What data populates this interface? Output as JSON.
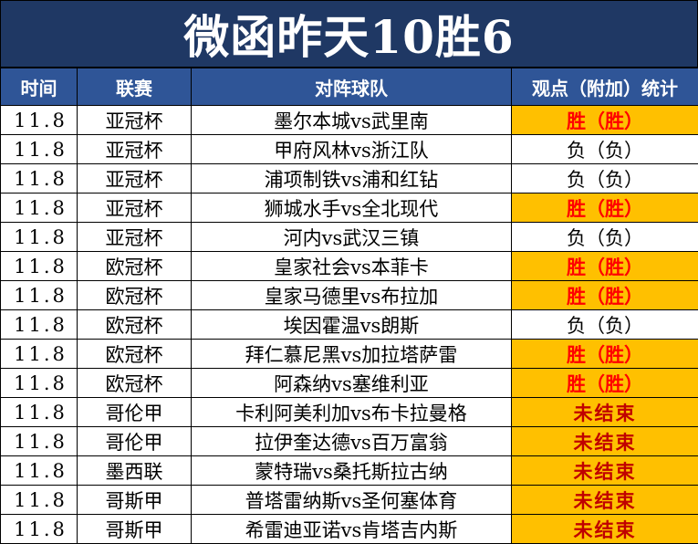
{
  "title": "微函昨天10胜6",
  "headers": {
    "date": "时间",
    "league": "联赛",
    "match": "对阵球队",
    "result": "观点（附加）统计"
  },
  "status_colors": {
    "win_bg": "#ffc000",
    "win_text": "#ff0000",
    "pending_text": "#c00000",
    "header_bg": "#2f5597",
    "title_bg": "#1f3864"
  },
  "rows": [
    {
      "date": "11.8",
      "league": "亚冠杯",
      "match": "墨尔本城vs武里南",
      "result": "胜（胜）",
      "status": "win"
    },
    {
      "date": "11.8",
      "league": "亚冠杯",
      "match": "甲府风林vs浙江队",
      "result": "负（负）",
      "status": "loss"
    },
    {
      "date": "11.8",
      "league": "亚冠杯",
      "match": "浦项制铁vs浦和红钻",
      "result": "负（负）",
      "status": "loss"
    },
    {
      "date": "11.8",
      "league": "亚冠杯",
      "match": "狮城水手vs全北现代",
      "result": "胜（胜）",
      "status": "win"
    },
    {
      "date": "11.8",
      "league": "亚冠杯",
      "match": "河内vs武汉三镇",
      "result": "负（负）",
      "status": "loss"
    },
    {
      "date": "11.8",
      "league": "欧冠杯",
      "match": "皇家社会vs本菲卡",
      "result": "胜（胜）",
      "status": "win"
    },
    {
      "date": "11.8",
      "league": "欧冠杯",
      "match": "皇家马德里vs布拉加",
      "result": "胜（胜）",
      "status": "win"
    },
    {
      "date": "11.8",
      "league": "欧冠杯",
      "match": "埃因霍温vs朗斯",
      "result": "负（负）",
      "status": "loss"
    },
    {
      "date": "11.8",
      "league": "欧冠杯",
      "match": "拜仁慕尼黑vs加拉塔萨雷",
      "result": "胜（胜）",
      "status": "win"
    },
    {
      "date": "11.8",
      "league": "欧冠杯",
      "match": "阿森纳vs塞维利亚",
      "result": "胜（胜）",
      "status": "win"
    },
    {
      "date": "11.8",
      "league": "哥伦甲",
      "match": "卡利阿美利加vs布卡拉曼格",
      "result": "未结束",
      "status": "pending"
    },
    {
      "date": "11.8",
      "league": "哥伦甲",
      "match": "拉伊奎达德vs百万富翁",
      "result": "未结束",
      "status": "pending"
    },
    {
      "date": "11.8",
      "league": "墨西联",
      "match": "蒙特瑞vs桑托斯拉古纳",
      "result": "未结束",
      "status": "pending"
    },
    {
      "date": "11.8",
      "league": "哥斯甲",
      "match": "普塔雷纳斯vs圣何塞体育",
      "result": "未结束",
      "status": "pending"
    },
    {
      "date": "11.8",
      "league": "哥斯甲",
      "match": "希雷迪亚诺vs肯塔吉内斯",
      "result": "未结束",
      "status": "pending"
    }
  ]
}
